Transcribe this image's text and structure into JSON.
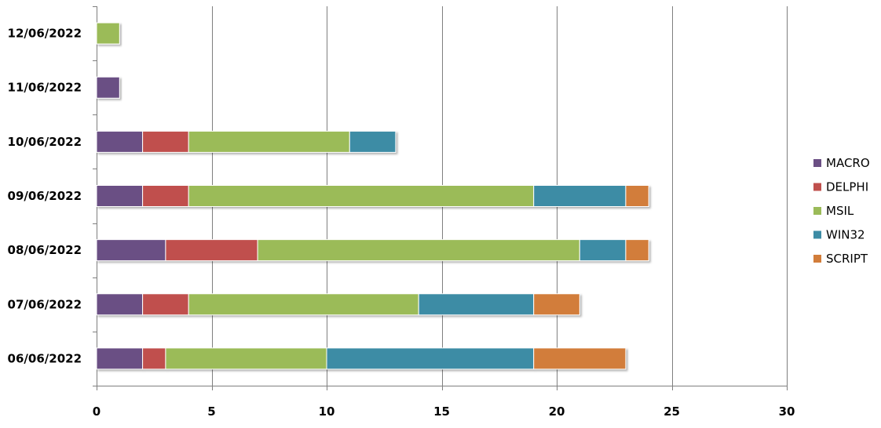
{
  "chart_data": {
    "type": "bar",
    "orientation": "horizontal",
    "stacked": true,
    "categories": [
      "06/06/2022",
      "07/06/2022",
      "08/06/2022",
      "09/06/2022",
      "10/06/2022",
      "11/06/2022",
      "12/06/2022"
    ],
    "series": [
      {
        "name": "MACRO",
        "color": "#6b4f84",
        "values": [
          2,
          2,
          3,
          2,
          2,
          1,
          0
        ]
      },
      {
        "name": "DELPHI",
        "color": "#c0504d",
        "values": [
          1,
          2,
          4,
          2,
          2,
          0,
          0
        ]
      },
      {
        "name": "MSIL",
        "color": "#9bbb59",
        "values": [
          7,
          10,
          14,
          15,
          7,
          0,
          1
        ]
      },
      {
        "name": "WIN32",
        "color": "#3d8ca5",
        "values": [
          9,
          5,
          2,
          4,
          2,
          0,
          0
        ]
      },
      {
        "name": "SCRIPT",
        "color": "#d27d3a",
        "values": [
          4,
          2,
          1,
          1,
          0,
          0,
          0
        ]
      }
    ],
    "xlim": [
      0,
      30
    ],
    "xticks": [
      0,
      5,
      10,
      15,
      20,
      25,
      30
    ],
    "xlabel": "",
    "ylabel": "",
    "title": "",
    "grid": "vertical",
    "legend": "right"
  }
}
